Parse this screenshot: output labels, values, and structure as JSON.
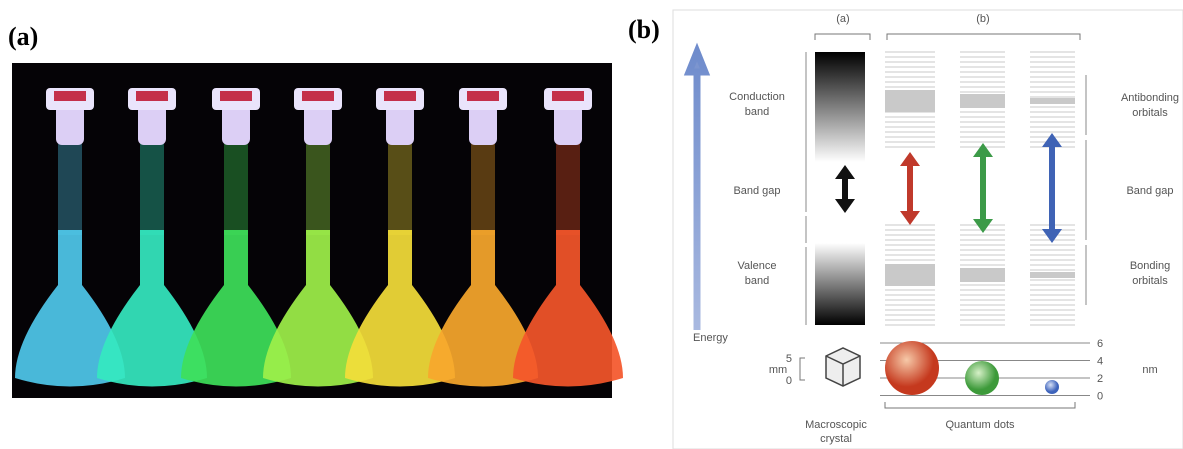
{
  "panel_a": {
    "label": "(a)"
  },
  "panel_b": {
    "label": "(b)",
    "column_a_label": "(a)",
    "column_b_label": "(b)",
    "left_labels": [
      [
        "Conduction",
        "band"
      ],
      [
        "Band gap"
      ],
      [
        "Valence",
        "band"
      ]
    ],
    "right_labels": [
      [
        "Antibonding",
        "orbitals"
      ],
      [
        "Band gap"
      ],
      [
        "Bonding",
        "orbitals"
      ]
    ],
    "energy_label": "Energy",
    "mm_label": "mm",
    "mm_ticks": [
      "5",
      "0"
    ],
    "nm_label": "nm",
    "nm_ticks": [
      "6",
      "4",
      "2",
      "0"
    ],
    "crystal_label": [
      "Macroscopic",
      "crystal"
    ],
    "dots_label": "Quantum dots"
  }
}
